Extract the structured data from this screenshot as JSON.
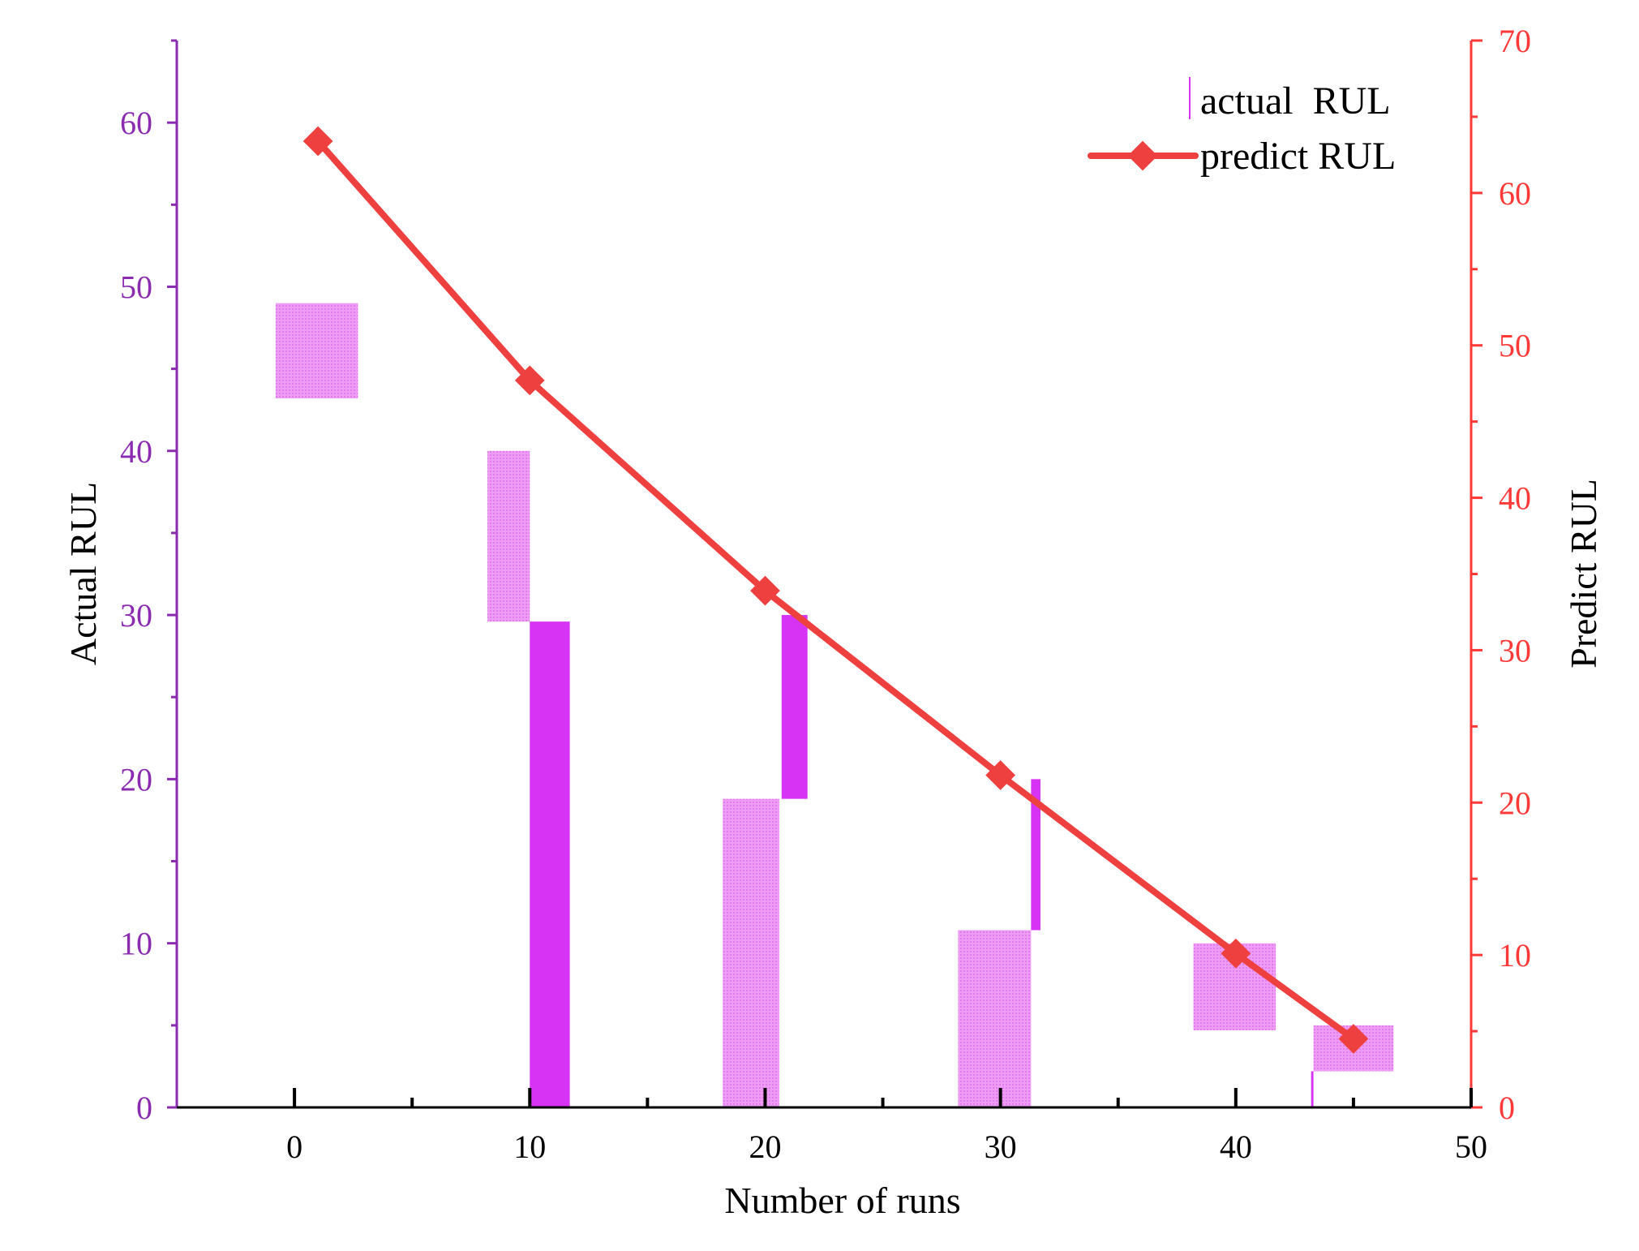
{
  "chart_data": {
    "type": "bar+line",
    "title": "",
    "xlabel": "Number of runs",
    "ylabel_left": "Actual RUL",
    "ylabel_right": "Predict RUL",
    "xlim": [
      -5,
      50
    ],
    "ylim_left": [
      0,
      65
    ],
    "ylim_right": [
      0,
      70
    ],
    "xticks": [
      "0",
      "10",
      "20",
      "30",
      "40",
      "50"
    ],
    "yticks_left": [
      "0",
      "10",
      "20",
      "30",
      "40",
      "50",
      "60"
    ],
    "yticks_right": [
      "0",
      "10",
      "20",
      "30",
      "40",
      "50",
      "60",
      "70"
    ],
    "grid": false,
    "legend_position": "top-right",
    "series": [
      {
        "name": "actual  RUL",
        "axis": "left",
        "kind": "floating-bar",
        "bars": [
          {
            "x0": -0.8,
            "x1": 2.7,
            "low": 43.2,
            "high": 49.0,
            "style": "hatched"
          },
          {
            "x0": 8.2,
            "x1": 10.0,
            "low": 29.6,
            "high": 40.0,
            "style": "hatched"
          },
          {
            "x0": 10.0,
            "x1": 11.7,
            "low": 0.0,
            "high": 29.6,
            "style": "solid"
          },
          {
            "x0": 18.2,
            "x1": 20.6,
            "low": 0.0,
            "high": 18.8,
            "style": "hatched"
          },
          {
            "x0": 20.7,
            "x1": 21.8,
            "low": 18.8,
            "high": 30.0,
            "style": "solid"
          },
          {
            "x0": 28.2,
            "x1": 31.3,
            "low": 0.0,
            "high": 10.8,
            "style": "hatched"
          },
          {
            "x0": 31.3,
            "x1": 31.7,
            "low": 10.8,
            "high": 20.0,
            "style": "solid"
          },
          {
            "x0": 38.2,
            "x1": 41.7,
            "low": 4.7,
            "high": 10.0,
            "style": "hatched"
          },
          {
            "x0": 43.2,
            "x1": 43.3,
            "low": 0.0,
            "high": 2.2,
            "style": "solid"
          },
          {
            "x0": 43.3,
            "x1": 46.7,
            "low": 2.2,
            "high": 5.0,
            "style": "hatched"
          }
        ]
      },
      {
        "name": "predict RUL",
        "axis": "right",
        "kind": "line",
        "x": [
          1,
          10,
          20,
          30,
          40,
          45
        ],
        "values": [
          63.4,
          47.7,
          33.9,
          21.8,
          10.1,
          4.5
        ]
      }
    ],
    "colors": {
      "left_axis": "#8a2bb0",
      "right_axis": "#ff3838",
      "bar_solid": "#d633f5",
      "bar_hatched": "#ee9cf6",
      "line": "#ef4040"
    }
  }
}
